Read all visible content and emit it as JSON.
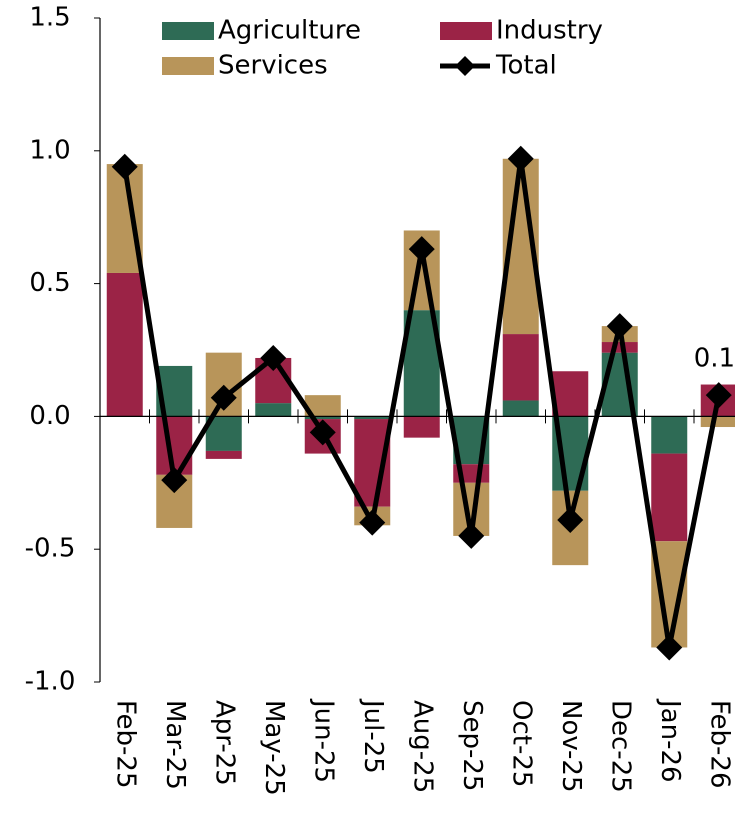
{
  "chart_data": {
    "type": "stacked-bar-line",
    "categories": [
      "Feb-25",
      "Mar-25",
      "Apr-25",
      "May-25",
      "Jun-25",
      "Jul-25",
      "Aug-25",
      "Sep-25",
      "Oct-25",
      "Nov-25",
      "Dec-25",
      "Jan-26",
      "Feb-26"
    ],
    "series": [
      {
        "name": "Agriculture",
        "color": "#2e6b55",
        "values": [
          0,
          0.19,
          -0.13,
          0.05,
          -0.01,
          -0.01,
          0.4,
          -0.18,
          0.06,
          -0.28,
          0.24,
          -0.14,
          0
        ]
      },
      {
        "name": "Industry",
        "color": "#9b2346",
        "values": [
          0.54,
          -0.22,
          -0.03,
          0.17,
          -0.13,
          -0.33,
          -0.08,
          -0.07,
          0.25,
          0.17,
          0.04,
          -0.33,
          0.12
        ]
      },
      {
        "name": "Services",
        "color": "#b8955a",
        "values": [
          0.41,
          -0.2,
          0.24,
          0,
          0.08,
          -0.07,
          0.3,
          -0.2,
          0.66,
          -0.28,
          0.06,
          -0.4,
          -0.04
        ]
      },
      {
        "name": "Total",
        "color": "#000000",
        "type": "line",
        "values": [
          0.94,
          -0.24,
          0.07,
          0.22,
          -0.06,
          -0.4,
          0.63,
          -0.45,
          0.97,
          -0.39,
          0.34,
          -0.87,
          0.08
        ],
        "value_labels": [
          null,
          null,
          null,
          null,
          null,
          null,
          null,
          null,
          null,
          null,
          null,
          null,
          "0.1"
        ]
      }
    ],
    "ylim": [
      -1,
      1.5
    ],
    "yticks": [
      {
        "value": -1,
        "label": "-1.0"
      },
      -0.5,
      {
        "value": 0,
        "label": "0.0"
      },
      0.5,
      {
        "value": 1,
        "label": "1.0"
      },
      1.5
    ]
  }
}
